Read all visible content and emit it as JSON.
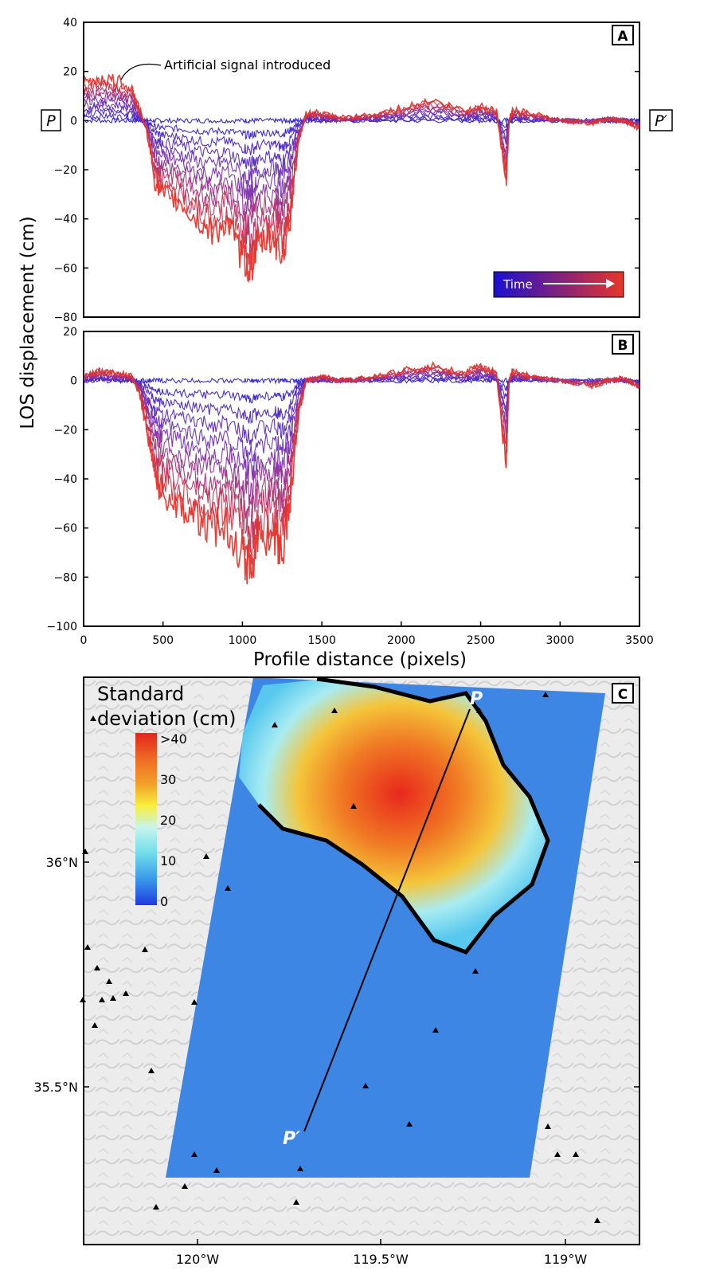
{
  "figure": {
    "ylabel_shared": "LOS displacement (cm)",
    "xlabel_shared": "Profile distance (pixels)",
    "profile_start_label": "P",
    "profile_end_label": "P′",
    "time_legend_label": "Time",
    "annotation_text": "Artificial signal introduced"
  },
  "colors": {
    "early": "#2a1fd6",
    "mid": "#7a2fb0",
    "late": "#e8332a",
    "time_bar_start": "#1a10d0",
    "time_bar_end": "#e83528",
    "frame": "#000000"
  },
  "chart_data": [
    {
      "panel": "A",
      "type": "line",
      "xlim": [
        0,
        3500
      ],
      "ylim": [
        -80,
        40
      ],
      "xticks": [
        0,
        500,
        1000,
        1500,
        2000,
        2500,
        3000,
        3500
      ],
      "yticks": [
        40,
        20,
        0,
        -20,
        -40,
        -60,
        -80
      ],
      "xlabel": "",
      "ylabel": "LOS displacement (cm)",
      "legend": "bottom-right",
      "series_count": 11,
      "series_description_note": "LOS displacement profiles through time, from early (blue) to late (red)",
      "x": [
        0,
        100,
        200,
        300,
        350,
        400,
        450,
        500,
        600,
        700,
        800,
        900,
        1000,
        1050,
        1100,
        1200,
        1250,
        1300,
        1350,
        1400,
        1500,
        1600,
        1800,
        2000,
        2200,
        2400,
        2500,
        2600,
        2660,
        2680,
        2700,
        2800,
        3000,
        3200,
        3300,
        3400,
        3500
      ],
      "final_series_values": [
        15,
        17,
        16,
        14,
        5,
        -5,
        -25,
        -30,
        -33,
        -40,
        -45,
        -42,
        -55,
        -60,
        -50,
        -48,
        -55,
        -40,
        -10,
        3,
        3,
        1,
        2,
        5,
        8,
        4,
        6,
        4,
        -25,
        0,
        4,
        3,
        0,
        -1,
        1,
        0,
        -3
      ],
      "annotations": [
        {
          "text": "Artificial signal introduced",
          "x": 250,
          "y": 22
        }
      ],
      "panel_label": "A"
    },
    {
      "panel": "B",
      "type": "line",
      "xlim": [
        0,
        3500
      ],
      "ylim": [
        -100,
        20
      ],
      "xticks": [
        0,
        500,
        1000,
        1500,
        2000,
        2500,
        3000,
        3500
      ],
      "yticks": [
        20,
        0,
        -20,
        -40,
        -60,
        -80,
        -100
      ],
      "xlabel": "Profile distance (pixels)",
      "ylabel": "LOS displacement (cm)",
      "series_count": 11,
      "x": [
        0,
        100,
        200,
        300,
        350,
        400,
        450,
        500,
        600,
        700,
        800,
        900,
        1000,
        1050,
        1100,
        1200,
        1250,
        1300,
        1350,
        1400,
        1500,
        1600,
        1800,
        2000,
        2200,
        2400,
        2500,
        2600,
        2660,
        2680,
        2700,
        2800,
        3000,
        3200,
        3300,
        3400,
        3500
      ],
      "final_series_values": [
        2,
        4,
        3,
        2,
        -5,
        -20,
        -40,
        -45,
        -50,
        -55,
        -60,
        -58,
        -70,
        -75,
        -65,
        -62,
        -70,
        -50,
        -15,
        0,
        2,
        0,
        1,
        4,
        6,
        3,
        6,
        3,
        -35,
        0,
        4,
        2,
        0,
        -2,
        0,
        1,
        -3
      ],
      "panel_label": "B"
    },
    {
      "panel": "C",
      "type": "heatmap",
      "title": "Standard deviation (cm)",
      "colorbar_ticks": [
        ">40",
        "30",
        "20",
        "10",
        "0"
      ],
      "lat_ticks": [
        "36°N",
        "35.5°N"
      ],
      "lon_ticks": [
        "120°W",
        "119.5°W",
        "119°W"
      ],
      "profile_labels": [
        "P",
        "P′"
      ],
      "panel_label": "C"
    }
  ]
}
